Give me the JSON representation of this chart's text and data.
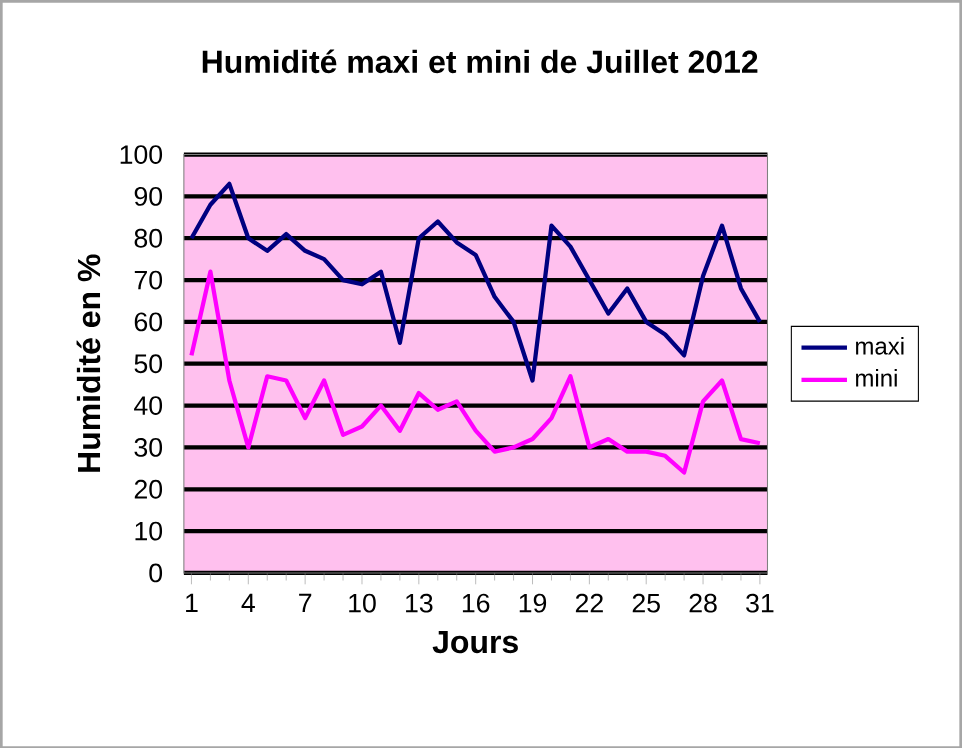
{
  "chart_data": {
    "type": "line",
    "title": "Humidité maxi et mini de Juillet 2012",
    "xlabel": "Jours",
    "ylabel": "Humidité en %",
    "x": [
      1,
      2,
      3,
      4,
      5,
      6,
      7,
      8,
      9,
      10,
      11,
      12,
      13,
      14,
      15,
      16,
      17,
      18,
      19,
      20,
      21,
      22,
      23,
      24,
      25,
      26,
      27,
      28,
      29,
      30,
      31
    ],
    "series": [
      {
        "name": "maxi",
        "color": "#000080",
        "values": [
          80,
          88,
          93,
          80,
          77,
          81,
          77,
          75,
          70,
          69,
          72,
          55,
          80,
          84,
          79,
          76,
          66,
          60,
          46,
          83,
          78,
          70,
          62,
          68,
          60,
          57,
          52,
          71,
          83,
          68,
          60
        ]
      },
      {
        "name": "mini",
        "color": "#ff00ff",
        "values": [
          52,
          72,
          46,
          30,
          47,
          46,
          37,
          46,
          33,
          35,
          40,
          34,
          43,
          39,
          41,
          34,
          29,
          30,
          32,
          37,
          47,
          30,
          32,
          29,
          29,
          28,
          24,
          41,
          46,
          32,
          31
        ]
      }
    ],
    "xlim": [
      0.6,
      31.4
    ],
    "xticks": [
      1,
      4,
      7,
      10,
      13,
      16,
      19,
      22,
      25,
      28,
      31
    ],
    "ylim": [
      0,
      100
    ],
    "yticks": [
      0,
      10,
      20,
      30,
      40,
      50,
      60,
      70,
      80,
      90,
      100
    ],
    "grid": "y",
    "legend": "right",
    "marker": "none",
    "line_style": "solid"
  }
}
